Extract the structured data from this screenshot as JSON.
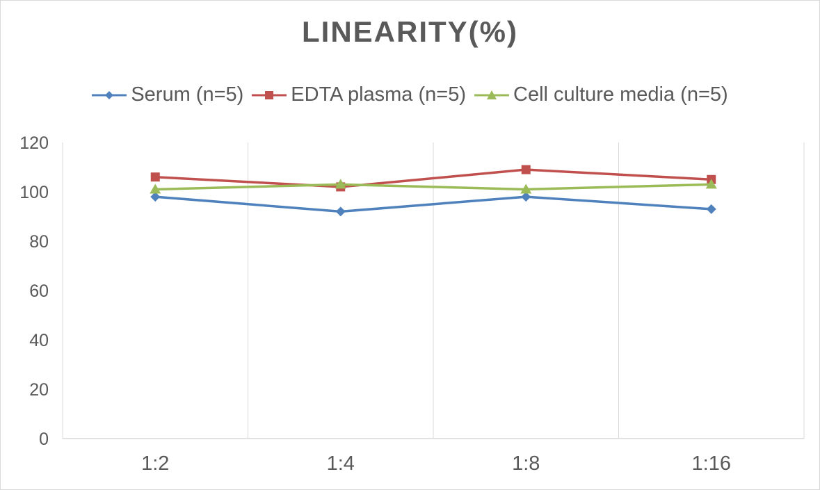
{
  "chart_data": {
    "type": "line",
    "title": "LINEARITY(%)",
    "xlabel": "",
    "ylabel": "",
    "categories": [
      "1:2",
      "1:4",
      "1:8",
      "1:16"
    ],
    "ylim": [
      0,
      120
    ],
    "yticks": [
      0,
      20,
      40,
      60,
      80,
      100,
      120
    ],
    "grid": "vertical",
    "legend": "top",
    "series": [
      {
        "name": "Serum (n=5)",
        "color": "#4f81bd",
        "marker": "diamond",
        "values": [
          98,
          92,
          98,
          93
        ]
      },
      {
        "name": "EDTA plasma (n=5)",
        "color": "#c0504d",
        "marker": "square",
        "values": [
          106,
          102,
          109,
          105
        ]
      },
      {
        "name": "Cell culture media (n=5)",
        "color": "#9bbb59",
        "marker": "triangle",
        "values": [
          101,
          103,
          101,
          103
        ]
      }
    ]
  }
}
